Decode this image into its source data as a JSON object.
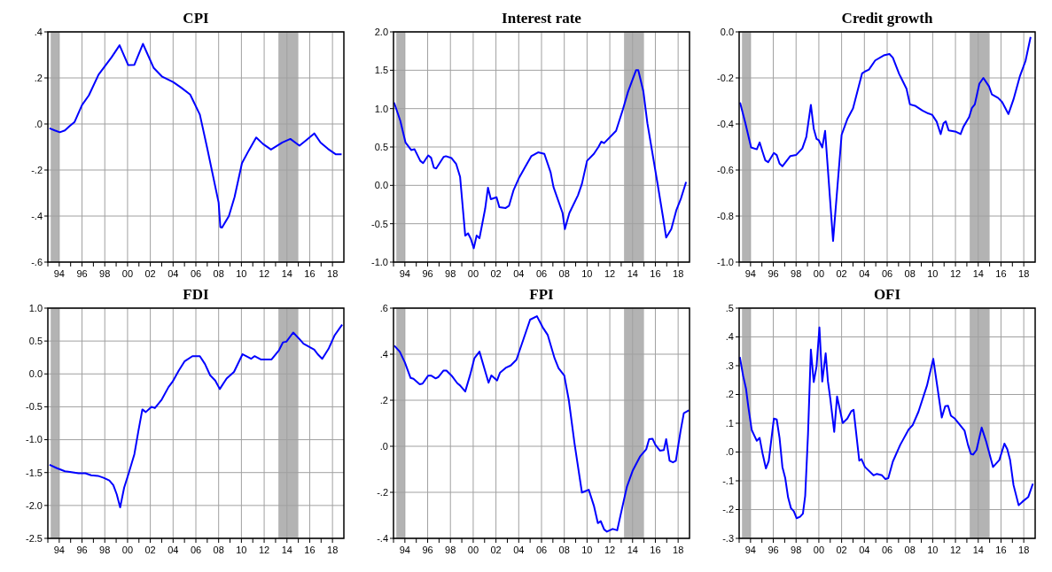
{
  "chart_data": [
    {
      "type": "line",
      "title": "CPI",
      "xlim": [
        1993,
        2019
      ],
      "ylim": [
        -0.6,
        0.4
      ],
      "grid": true,
      "xticks": [
        {
          "value": 1993,
          "label": null
        },
        {
          "value": 1994,
          "label": "94"
        },
        {
          "value": 1995,
          "label": null
        },
        {
          "value": 1996,
          "label": "96"
        },
        {
          "value": 1997,
          "label": null
        },
        {
          "value": 1998,
          "label": "98"
        },
        {
          "value": 1999,
          "label": null
        },
        {
          "value": 2000,
          "label": "00"
        },
        {
          "value": 2001,
          "label": null
        },
        {
          "value": 2002,
          "label": "02"
        },
        {
          "value": 2003,
          "label": null
        },
        {
          "value": 2004,
          "label": "04"
        },
        {
          "value": 2005,
          "label": null
        },
        {
          "value": 2006,
          "label": "06"
        },
        {
          "value": 2007,
          "label": null
        },
        {
          "value": 2008,
          "label": "08"
        },
        {
          "value": 2009,
          "label": null
        },
        {
          "value": 2010,
          "label": "10"
        },
        {
          "value": 2011,
          "label": null
        },
        {
          "value": 2012,
          "label": "12"
        },
        {
          "value": 2013,
          "label": null
        },
        {
          "value": 2014,
          "label": "14"
        },
        {
          "value": 2015,
          "label": null
        },
        {
          "value": 2016,
          "label": "16"
        },
        {
          "value": 2017,
          "label": null
        },
        {
          "value": 2018,
          "label": "18"
        }
      ],
      "yticks": [
        {
          "value": -0.6,
          "label": "-.6"
        },
        {
          "value": -0.4,
          "label": "-.4"
        },
        {
          "value": -0.2,
          "label": "-.2"
        },
        {
          "value": 0,
          "label": ".0"
        },
        {
          "value": 0.2,
          "label": ".2"
        },
        {
          "value": 0.4,
          "label": ".4"
        }
      ],
      "bands": [
        {
          "axis": "x",
          "from": 1993.25,
          "to": 1994,
          "color": "#b3b3b3"
        },
        {
          "axis": "x",
          "from": 2013.25,
          "to": 2015,
          "color": "#b3b3b3"
        }
      ],
      "x": [
        1993.14,
        1993.6,
        1994.05,
        1994.5,
        1994.9,
        1995.35,
        1996.0,
        1996.6,
        1997.45,
        1998.6,
        1999.3,
        2000.05,
        2000.6,
        2001.35,
        2002.3,
        2003.05,
        2004.0,
        2004.7,
        2005.5,
        2006.35,
        2007.0,
        2008.0,
        2008.15,
        2008.3,
        2008.9,
        2009.4,
        2010.05,
        2010.65,
        2011.3,
        2011.9,
        2012.6,
        2013.6,
        2014.3,
        2015.1,
        2015.75,
        2016.4,
        2016.95,
        2017.6,
        2018.3,
        2018.8
      ],
      "series": [
        {
          "color": "#0000ff",
          "values": [
            -0.019,
            -0.028,
            -0.036,
            -0.028,
            -0.01,
            0.009,
            0.082,
            0.124,
            0.214,
            0.29,
            0.342,
            0.256,
            0.257,
            0.348,
            0.243,
            0.205,
            0.182,
            0.158,
            0.128,
            0.041,
            -0.106,
            -0.342,
            -0.448,
            -0.45,
            -0.4,
            -0.317,
            -0.17,
            -0.115,
            -0.059,
            -0.087,
            -0.111,
            -0.08,
            -0.065,
            -0.094,
            -0.068,
            -0.041,
            -0.081,
            -0.108,
            -0.132,
            -0.132
          ]
        }
      ]
    },
    {
      "type": "line",
      "title": "Interest rate",
      "xlim": [
        1993,
        2019
      ],
      "ylim": [
        -1.0,
        2.0
      ],
      "grid": true,
      "xticks": [
        {
          "value": 1993,
          "label": null
        },
        {
          "value": 1994,
          "label": "94"
        },
        {
          "value": 1995,
          "label": null
        },
        {
          "value": 1996,
          "label": "96"
        },
        {
          "value": 1997,
          "label": null
        },
        {
          "value": 1998,
          "label": "98"
        },
        {
          "value": 1999,
          "label": null
        },
        {
          "value": 2000,
          "label": "00"
        },
        {
          "value": 2001,
          "label": null
        },
        {
          "value": 2002,
          "label": "02"
        },
        {
          "value": 2003,
          "label": null
        },
        {
          "value": 2004,
          "label": "04"
        },
        {
          "value": 2005,
          "label": null
        },
        {
          "value": 2006,
          "label": "06"
        },
        {
          "value": 2007,
          "label": null
        },
        {
          "value": 2008,
          "label": "08"
        },
        {
          "value": 2009,
          "label": null
        },
        {
          "value": 2010,
          "label": "10"
        },
        {
          "value": 2011,
          "label": null
        },
        {
          "value": 2012,
          "label": "12"
        },
        {
          "value": 2013,
          "label": null
        },
        {
          "value": 2014,
          "label": "14"
        },
        {
          "value": 2015,
          "label": null
        },
        {
          "value": 2016,
          "label": "16"
        },
        {
          "value": 2017,
          "label": null
        },
        {
          "value": 2018,
          "label": "18"
        }
      ],
      "yticks": [
        {
          "value": -1.0,
          "label": "-1.0"
        },
        {
          "value": -0.5,
          "label": "-0.5"
        },
        {
          "value": 0,
          "label": "0.0"
        },
        {
          "value": 0.5,
          "label": "0.5"
        },
        {
          "value": 1.0,
          "label": "1.0"
        },
        {
          "value": 1.5,
          "label": "1.5"
        },
        {
          "value": 2.0,
          "label": "2.0"
        }
      ],
      "bands": [
        {
          "axis": "x",
          "from": 1993.25,
          "to": 1994,
          "color": "#b3b3b3"
        },
        {
          "axis": "x",
          "from": 2013.25,
          "to": 2015,
          "color": "#b3b3b3"
        }
      ],
      "x": [
        1993.05,
        1993.6,
        1994.05,
        1994.55,
        1994.85,
        1995.35,
        1995.6,
        1996.05,
        1996.3,
        1996.55,
        1996.75,
        1997.4,
        1997.6,
        1998.1,
        1998.5,
        1998.85,
        1999.3,
        1999.55,
        1999.8,
        2000.05,
        2000.3,
        2000.55,
        2001.05,
        2001.3,
        2001.55,
        2002.05,
        2002.3,
        2002.85,
        2003.15,
        2003.55,
        2004.0,
        2004.6,
        2005.1,
        2005.7,
        2006.25,
        2006.8,
        2007.05,
        2007.85,
        2008.05,
        2008.45,
        2009.2,
        2009.55,
        2010.0,
        2010.6,
        2011.0,
        2011.25,
        2011.5,
        2012.55,
        2013.15,
        2013.6,
        2014.3,
        2014.5,
        2014.95,
        2015.3,
        2016.2,
        2016.7,
        2016.95,
        2017.4,
        2017.85,
        2018.25,
        2018.7
      ],
      "series": [
        {
          "color": "#0000ff",
          "values": [
            1.08,
            0.84,
            0.56,
            0.46,
            0.47,
            0.32,
            0.29,
            0.39,
            0.36,
            0.23,
            0.22,
            0.37,
            0.38,
            0.355,
            0.28,
            0.11,
            -0.655,
            -0.625,
            -0.7,
            -0.82,
            -0.655,
            -0.69,
            -0.305,
            -0.03,
            -0.18,
            -0.155,
            -0.285,
            -0.295,
            -0.265,
            -0.06,
            0.09,
            0.25,
            0.38,
            0.43,
            0.41,
            0.17,
            -0.02,
            -0.36,
            -0.57,
            -0.36,
            -0.13,
            0.02,
            0.32,
            0.41,
            0.5,
            0.57,
            0.55,
            0.71,
            0.99,
            1.22,
            1.5,
            1.5,
            1.22,
            0.81,
            0.015,
            -0.44,
            -0.68,
            -0.57,
            -0.32,
            -0.17,
            0.045
          ]
        }
      ]
    },
    {
      "type": "line",
      "title": "Credit growth",
      "xlim": [
        1993,
        2019
      ],
      "ylim": [
        -1.0,
        0.0
      ],
      "grid": true,
      "xticks": [
        {
          "value": 1993,
          "label": null
        },
        {
          "value": 1994,
          "label": "94"
        },
        {
          "value": 1995,
          "label": null
        },
        {
          "value": 1996,
          "label": "96"
        },
        {
          "value": 1997,
          "label": null
        },
        {
          "value": 1998,
          "label": "98"
        },
        {
          "value": 1999,
          "label": null
        },
        {
          "value": 2000,
          "label": "00"
        },
        {
          "value": 2001,
          "label": null
        },
        {
          "value": 2002,
          "label": "02"
        },
        {
          "value": 2003,
          "label": null
        },
        {
          "value": 2004,
          "label": "04"
        },
        {
          "value": 2005,
          "label": null
        },
        {
          "value": 2006,
          "label": "06"
        },
        {
          "value": 2007,
          "label": null
        },
        {
          "value": 2008,
          "label": "08"
        },
        {
          "value": 2009,
          "label": null
        },
        {
          "value": 2010,
          "label": "10"
        },
        {
          "value": 2011,
          "label": null
        },
        {
          "value": 2012,
          "label": "12"
        },
        {
          "value": 2013,
          "label": null
        },
        {
          "value": 2014,
          "label": "14"
        },
        {
          "value": 2015,
          "label": null
        },
        {
          "value": 2016,
          "label": "16"
        },
        {
          "value": 2017,
          "label": null
        },
        {
          "value": 2018,
          "label": "18"
        }
      ],
      "yticks": [
        {
          "value": -1.0,
          "label": "-1.0"
        },
        {
          "value": -0.8,
          "label": "-0.8"
        },
        {
          "value": -0.6,
          "label": "-0.6"
        },
        {
          "value": -0.4,
          "label": "-0.4"
        },
        {
          "value": -0.2,
          "label": "-0.2"
        },
        {
          "value": 0,
          "label": "0.0"
        }
      ],
      "bands": [
        {
          "axis": "x",
          "from": 1993.25,
          "to": 1994,
          "color": "#b3b3b3"
        },
        {
          "axis": "x",
          "from": 2013.25,
          "to": 2015,
          "color": "#b3b3b3"
        }
      ],
      "x": [
        1993.08,
        1993.55,
        1994.05,
        1994.55,
        1994.8,
        1995.05,
        1995.3,
        1995.55,
        1996.05,
        1996.3,
        1996.55,
        1996.8,
        1997.5,
        1998.0,
        1998.55,
        1998.9,
        1999.3,
        1999.55,
        1999.8,
        2000.0,
        2000.3,
        2000.55,
        2001.25,
        2002.0,
        2002.5,
        2003.0,
        2003.8,
        2004.05,
        2004.4,
        2004.95,
        2005.7,
        2006.2,
        2006.5,
        2007.05,
        2007.7,
        2008.0,
        2008.45,
        2009.1,
        2009.6,
        2009.95,
        2010.35,
        2010.7,
        2010.95,
        2011.15,
        2011.4,
        2012.05,
        2012.45,
        2012.7,
        2013.2,
        2013.45,
        2013.7,
        2014.1,
        2014.45,
        2014.95,
        2015.2,
        2015.75,
        2016.1,
        2016.65,
        2017.1,
        2017.65,
        2018.15,
        2018.6
      ],
      "series": [
        {
          "color": "#0000ff",
          "values": [
            -0.307,
            -0.397,
            -0.502,
            -0.51,
            -0.48,
            -0.52,
            -0.558,
            -0.566,
            -0.526,
            -0.535,
            -0.572,
            -0.584,
            -0.539,
            -0.535,
            -0.506,
            -0.456,
            -0.317,
            -0.42,
            -0.465,
            -0.471,
            -0.502,
            -0.43,
            -0.908,
            -0.447,
            -0.379,
            -0.333,
            -0.18,
            -0.172,
            -0.164,
            -0.124,
            -0.102,
            -0.096,
            -0.112,
            -0.182,
            -0.247,
            -0.315,
            -0.321,
            -0.342,
            -0.354,
            -0.36,
            -0.39,
            -0.444,
            -0.397,
            -0.389,
            -0.428,
            -0.434,
            -0.444,
            -0.412,
            -0.37,
            -0.33,
            -0.315,
            -0.225,
            -0.2,
            -0.237,
            -0.272,
            -0.287,
            -0.305,
            -0.357,
            -0.293,
            -0.194,
            -0.127,
            -0.022
          ]
        }
      ]
    },
    {
      "type": "line",
      "title": "FDI",
      "xlim": [
        1993,
        2019
      ],
      "ylim": [
        -2.5,
        1.0
      ],
      "grid": true,
      "xticks": [
        {
          "value": 1993,
          "label": null
        },
        {
          "value": 1994,
          "label": "94"
        },
        {
          "value": 1995,
          "label": null
        },
        {
          "value": 1996,
          "label": "96"
        },
        {
          "value": 1997,
          "label": null
        },
        {
          "value": 1998,
          "label": "98"
        },
        {
          "value": 1999,
          "label": null
        },
        {
          "value": 2000,
          "label": "00"
        },
        {
          "value": 2001,
          "label": null
        },
        {
          "value": 2002,
          "label": "02"
        },
        {
          "value": 2003,
          "label": null
        },
        {
          "value": 2004,
          "label": "04"
        },
        {
          "value": 2005,
          "label": null
        },
        {
          "value": 2006,
          "label": "06"
        },
        {
          "value": 2007,
          "label": null
        },
        {
          "value": 2008,
          "label": "08"
        },
        {
          "value": 2009,
          "label": null
        },
        {
          "value": 2010,
          "label": "10"
        },
        {
          "value": 2011,
          "label": null
        },
        {
          "value": 2012,
          "label": "12"
        },
        {
          "value": 2013,
          "label": null
        },
        {
          "value": 2014,
          "label": "14"
        },
        {
          "value": 2015,
          "label": null
        },
        {
          "value": 2016,
          "label": "16"
        },
        {
          "value": 2017,
          "label": null
        },
        {
          "value": 2018,
          "label": "18"
        }
      ],
      "yticks": [
        {
          "value": -2.5,
          "label": "-2.5"
        },
        {
          "value": -2.0,
          "label": "-2.0"
        },
        {
          "value": -1.5,
          "label": "-1.5"
        },
        {
          "value": -1.0,
          "label": "-1.0"
        },
        {
          "value": -0.5,
          "label": "-0.5"
        },
        {
          "value": 0,
          "label": "0.0"
        },
        {
          "value": 0.5,
          "label": "0.5"
        },
        {
          "value": 1.0,
          "label": "1.0"
        }
      ],
      "bands": [
        {
          "axis": "x",
          "from": 1993.25,
          "to": 1994,
          "color": "#b3b3b3"
        },
        {
          "axis": "x",
          "from": 2013.25,
          "to": 2015,
          "color": "#b3b3b3"
        }
      ],
      "x": [
        1993.15,
        1993.75,
        1994.5,
        1994.95,
        1995.7,
        1996.3,
        1996.8,
        1997.4,
        1997.9,
        1998.4,
        1998.75,
        1999.05,
        1999.35,
        1999.7,
        2000.1,
        2000.6,
        2000.95,
        2001.3,
        2001.6,
        2002.1,
        2002.4,
        2003.0,
        2003.6,
        2003.95,
        2004.5,
        2005.0,
        2005.7,
        2006.35,
        2006.8,
        2007.25,
        2007.7,
        2008.1,
        2008.7,
        2009.35,
        2010.1,
        2010.3,
        2010.85,
        2011.15,
        2011.7,
        2012.65,
        2013.3,
        2013.65,
        2013.95,
        2014.55,
        2015.2,
        2015.45,
        2016.4,
        2016.7,
        2017.1,
        2017.65,
        2018.2,
        2018.85
      ],
      "series": [
        {
          "color": "#0000ff",
          "values": [
            -1.38,
            -1.43,
            -1.48,
            -1.49,
            -1.51,
            -1.51,
            -1.54,
            -1.55,
            -1.58,
            -1.62,
            -1.69,
            -1.83,
            -2.03,
            -1.73,
            -1.51,
            -1.22,
            -0.87,
            -0.54,
            -0.58,
            -0.5,
            -0.52,
            -0.39,
            -0.2,
            -0.12,
            0.05,
            0.19,
            0.27,
            0.27,
            0.15,
            -0.02,
            -0.1,
            -0.23,
            -0.07,
            0.03,
            0.3,
            0.28,
            0.23,
            0.27,
            0.22,
            0.22,
            0.36,
            0.48,
            0.49,
            0.63,
            0.51,
            0.46,
            0.37,
            0.3,
            0.23,
            0.38,
            0.59,
            0.75
          ]
        }
      ]
    },
    {
      "type": "line",
      "title": "FPI",
      "xlim": [
        1993,
        2019
      ],
      "ylim": [
        -0.4,
        0.6
      ],
      "grid": true,
      "xticks": [
        {
          "value": 1993,
          "label": null
        },
        {
          "value": 1994,
          "label": "94"
        },
        {
          "value": 1995,
          "label": null
        },
        {
          "value": 1996,
          "label": "96"
        },
        {
          "value": 1997,
          "label": null
        },
        {
          "value": 1998,
          "label": "98"
        },
        {
          "value": 1999,
          "label": null
        },
        {
          "value": 2000,
          "label": "00"
        },
        {
          "value": 2001,
          "label": null
        },
        {
          "value": 2002,
          "label": "02"
        },
        {
          "value": 2003,
          "label": null
        },
        {
          "value": 2004,
          "label": "04"
        },
        {
          "value": 2005,
          "label": null
        },
        {
          "value": 2006,
          "label": "06"
        },
        {
          "value": 2007,
          "label": null
        },
        {
          "value": 2008,
          "label": "08"
        },
        {
          "value": 2009,
          "label": null
        },
        {
          "value": 2010,
          "label": "10"
        },
        {
          "value": 2011,
          "label": null
        },
        {
          "value": 2012,
          "label": "12"
        },
        {
          "value": 2013,
          "label": null
        },
        {
          "value": 2014,
          "label": "14"
        },
        {
          "value": 2015,
          "label": null
        },
        {
          "value": 2016,
          "label": "16"
        },
        {
          "value": 2017,
          "label": null
        },
        {
          "value": 2018,
          "label": "18"
        }
      ],
      "yticks": [
        {
          "value": -0.4,
          "label": "-.4"
        },
        {
          "value": -0.2,
          "label": "-.2"
        },
        {
          "value": 0,
          "label": ".0"
        },
        {
          "value": 0.2,
          "label": ".2"
        },
        {
          "value": 0.4,
          "label": ".4"
        },
        {
          "value": 0.6,
          "label": ".6"
        }
      ],
      "bands": [
        {
          "axis": "x",
          "from": 1993.25,
          "to": 1994,
          "color": "#b3b3b3"
        },
        {
          "axis": "x",
          "from": 2013.25,
          "to": 2015,
          "color": "#b3b3b3"
        }
      ],
      "x": [
        1993.07,
        1993.55,
        1994.0,
        1994.5,
        1994.75,
        1995.3,
        1995.55,
        1996.05,
        1996.3,
        1996.7,
        1996.95,
        1997.4,
        1997.65,
        1998.1,
        1998.6,
        1998.85,
        1999.3,
        1999.75,
        2000.1,
        2000.55,
        2001.35,
        2001.6,
        2002.1,
        2002.35,
        2002.9,
        2003.3,
        2003.8,
        2004.45,
        2005.0,
        2005.6,
        2006.1,
        2006.55,
        2007.15,
        2007.5,
        2008.0,
        2008.4,
        2008.9,
        2009.55,
        2010.15,
        2010.6,
        2010.95,
        2011.2,
        2011.5,
        2011.75,
        2012.25,
        2012.65,
        2013.1,
        2013.5,
        2014.0,
        2014.65,
        2015.2,
        2015.45,
        2015.75,
        2016.0,
        2016.4,
        2016.75,
        2016.95,
        2017.25,
        2017.55,
        2017.8,
        2018.2,
        2018.5,
        2018.95
      ],
      "series": [
        {
          "color": "#0000ff",
          "values": [
            0.437,
            0.411,
            0.364,
            0.297,
            0.293,
            0.269,
            0.272,
            0.307,
            0.307,
            0.295,
            0.301,
            0.329,
            0.329,
            0.307,
            0.274,
            0.264,
            0.238,
            0.313,
            0.382,
            0.411,
            0.276,
            0.308,
            0.286,
            0.319,
            0.342,
            0.351,
            0.376,
            0.47,
            0.55,
            0.565,
            0.517,
            0.483,
            0.382,
            0.339,
            0.307,
            0.2,
            0.012,
            -0.201,
            -0.189,
            -0.258,
            -0.334,
            -0.325,
            -0.361,
            -0.371,
            -0.359,
            -0.365,
            -0.264,
            -0.176,
            -0.107,
            -0.045,
            -0.013,
            0.031,
            0.033,
            0.006,
            -0.019,
            -0.016,
            0.031,
            -0.063,
            -0.07,
            -0.063,
            0.062,
            0.144,
            0.156
          ]
        }
      ]
    },
    {
      "type": "line",
      "title": "OFI",
      "xlim": [
        1993,
        2019
      ],
      "ylim": [
        -0.3,
        0.5
      ],
      "grid": true,
      "xticks": [
        {
          "value": 1993,
          "label": null
        },
        {
          "value": 1994,
          "label": "94"
        },
        {
          "value": 1995,
          "label": null
        },
        {
          "value": 1996,
          "label": "96"
        },
        {
          "value": 1997,
          "label": null
        },
        {
          "value": 1998,
          "label": "98"
        },
        {
          "value": 1999,
          "label": null
        },
        {
          "value": 2000,
          "label": "00"
        },
        {
          "value": 2001,
          "label": null
        },
        {
          "value": 2002,
          "label": "02"
        },
        {
          "value": 2003,
          "label": null
        },
        {
          "value": 2004,
          "label": "04"
        },
        {
          "value": 2005,
          "label": null
        },
        {
          "value": 2006,
          "label": "06"
        },
        {
          "value": 2007,
          "label": null
        },
        {
          "value": 2008,
          "label": "08"
        },
        {
          "value": 2009,
          "label": null
        },
        {
          "value": 2010,
          "label": "10"
        },
        {
          "value": 2011,
          "label": null
        },
        {
          "value": 2012,
          "label": "12"
        },
        {
          "value": 2013,
          "label": null
        },
        {
          "value": 2014,
          "label": "14"
        },
        {
          "value": 2015,
          "label": null
        },
        {
          "value": 2016,
          "label": "16"
        },
        {
          "value": 2017,
          "label": null
        },
        {
          "value": 2018,
          "label": "18"
        }
      ],
      "yticks": [
        {
          "value": -0.3,
          "label": "-.3"
        },
        {
          "value": -0.2,
          "label": "-.2"
        },
        {
          "value": -0.1,
          "label": "-.1"
        },
        {
          "value": 0,
          "label": ".0"
        },
        {
          "value": 0.1,
          "label": ".1"
        },
        {
          "value": 0.2,
          "label": ".2"
        },
        {
          "value": 0.3,
          "label": ".3"
        },
        {
          "value": 0.4,
          "label": ".4"
        },
        {
          "value": 0.5,
          "label": ".5"
        }
      ],
      "bands": [
        {
          "axis": "x",
          "from": 1993.25,
          "to": 1994,
          "color": "#b3b3b3"
        },
        {
          "axis": "x",
          "from": 2013.25,
          "to": 2015,
          "color": "#b3b3b3"
        }
      ],
      "x": [
        1993.06,
        1993.35,
        1993.6,
        1993.8,
        1994.1,
        1994.55,
        1994.8,
        1995.05,
        1995.35,
        1995.6,
        1996.05,
        1996.3,
        1996.55,
        1996.8,
        1997.05,
        1997.3,
        1997.55,
        1997.8,
        1998.05,
        1998.35,
        1998.6,
        1998.8,
        1999.05,
        1999.3,
        1999.55,
        1999.8,
        2000.05,
        2000.3,
        2000.6,
        2000.8,
        2001.0,
        2001.35,
        2001.6,
        2002.1,
        2002.5,
        2002.85,
        2003.05,
        2003.55,
        2003.75,
        2004.05,
        2004.8,
        2005.1,
        2005.55,
        2005.85,
        2006.1,
        2006.5,
        2007.15,
        2007.9,
        2008.25,
        2008.75,
        2009.5,
        2010.05,
        2010.8,
        2011.1,
        2011.35,
        2011.6,
        2011.95,
        2012.8,
        2013.1,
        2013.35,
        2013.55,
        2013.85,
        2014.3,
        2014.7,
        2015.3,
        2015.85,
        2016.3,
        2016.55,
        2016.8,
        2017.1,
        2017.55,
        2017.9,
        2018.4,
        2018.8
      ],
      "series": [
        {
          "color": "#0000ff",
          "values": [
            0.33,
            0.265,
            0.221,
            0.159,
            0.077,
            0.039,
            0.049,
            -0.004,
            -0.057,
            -0.031,
            0.116,
            0.113,
            0.049,
            -0.052,
            -0.091,
            -0.158,
            -0.195,
            -0.206,
            -0.23,
            -0.225,
            -0.214,
            -0.153,
            0.063,
            0.356,
            0.243,
            0.298,
            0.433,
            0.245,
            0.343,
            0.245,
            0.187,
            0.07,
            0.193,
            0.101,
            0.116,
            0.142,
            0.147,
            -0.03,
            -0.025,
            -0.052,
            -0.081,
            -0.076,
            -0.081,
            -0.094,
            -0.091,
            -0.033,
            0.025,
            0.079,
            0.094,
            0.14,
            0.231,
            0.324,
            0.12,
            0.159,
            0.161,
            0.126,
            0.116,
            0.074,
            0.025,
            -0.006,
            -0.009,
            0.007,
            0.085,
            0.036,
            -0.052,
            -0.028,
            0.029,
            0.01,
            -0.028,
            -0.115,
            -0.185,
            -0.172,
            -0.156,
            -0.11
          ]
        }
      ]
    }
  ]
}
